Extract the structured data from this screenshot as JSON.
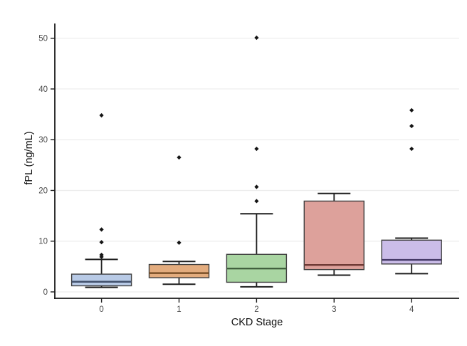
{
  "chart_data": {
    "type": "boxplot",
    "title": "",
    "xlabel": "CKD Stage",
    "ylabel": "fPL (ng/mL)",
    "categories": [
      "0",
      "1",
      "2",
      "3",
      "4"
    ],
    "ylim": [
      0,
      50
    ],
    "yticks": [
      0,
      10,
      20,
      30,
      40,
      50
    ],
    "grid": {
      "horizontal_major": true,
      "vertical": false,
      "color": "#ececec"
    },
    "legend": "none",
    "series": [
      {
        "label": "0",
        "whisker_low": 0.9,
        "q1": 1.2,
        "median": 2.0,
        "q3": 3.5,
        "whisker_high": 6.4,
        "outliers": [
          6.9,
          7.3,
          9.8,
          12.3,
          34.8
        ],
        "fill": "#b8cae6",
        "median_color": "#41506b"
      },
      {
        "label": "1",
        "whisker_low": 1.5,
        "q1": 2.8,
        "median": 3.7,
        "q3": 5.4,
        "whisker_high": 6.0,
        "outliers": [
          9.7,
          26.5
        ],
        "fill": "#e3ac7e",
        "median_color": "#7a5028"
      },
      {
        "label": "2",
        "whisker_low": 1.0,
        "q1": 1.9,
        "median": 4.6,
        "q3": 7.4,
        "whisker_high": 15.4,
        "outliers": [
          17.9,
          20.7,
          28.2,
          50.1
        ],
        "fill": "#a9d5a2",
        "median_color": "#41603e"
      },
      {
        "label": "3",
        "whisker_low": 3.3,
        "q1": 4.4,
        "median": 5.3,
        "q3": 17.9,
        "whisker_high": 19.4,
        "outliers": [],
        "fill": "#dda19b",
        "median_color": "#6e3a35"
      },
      {
        "label": "4",
        "whisker_low": 3.6,
        "q1": 5.5,
        "median": 6.3,
        "q3": 10.2,
        "whisker_high": 10.6,
        "outliers": [
          28.2,
          32.7,
          35.8
        ],
        "fill": "#cbbde9",
        "median_color": "#463a68"
      }
    ],
    "colors": {
      "box_border": "#3f3f3f",
      "whisker": "#1f1f1f",
      "axis": "#1a1a1a",
      "gridline": "#ececec",
      "tick_label": "#4a4a4a",
      "axis_title": "#111111",
      "outlier": "#141414",
      "background": "#ffffff"
    }
  }
}
